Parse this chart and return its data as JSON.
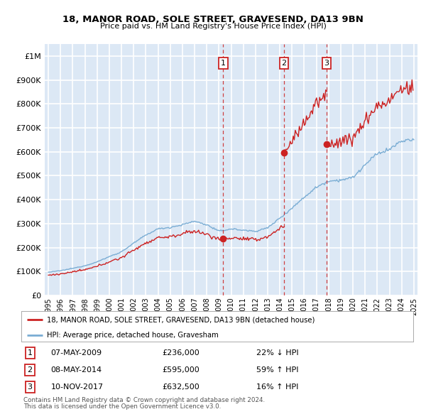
{
  "title1": "18, MANOR ROAD, SOLE STREET, GRAVESEND, DA13 9BN",
  "title2": "Price paid vs. HM Land Registry's House Price Index (HPI)",
  "ylim": [
    0,
    1050000
  ],
  "yticks": [
    0,
    100000,
    200000,
    300000,
    400000,
    500000,
    600000,
    700000,
    800000,
    900000,
    1000000
  ],
  "ytick_labels": [
    "£0",
    "£100K",
    "£200K",
    "£300K",
    "£400K",
    "£500K",
    "£600K",
    "£700K",
    "£800K",
    "£900K",
    "£1M"
  ],
  "xlim_start": 1994.7,
  "xlim_end": 2025.3,
  "background_color": "#dce8f5",
  "grid_color": "#ffffff",
  "red_line_color": "#cc2222",
  "blue_line_color": "#7aadd4",
  "transactions": [
    {
      "num": 1,
      "date": "07-MAY-2009",
      "price": 236000,
      "pct": "22%",
      "dir": "↓",
      "year": 2009.35
    },
    {
      "num": 2,
      "date": "08-MAY-2014",
      "price": 595000,
      "pct": "59%",
      "dir": "↑",
      "year": 2014.35
    },
    {
      "num": 3,
      "date": "10-NOV-2017",
      "price": 632500,
      "pct": "16%",
      "dir": "↑",
      "year": 2017.85
    }
  ],
  "legend_label_red": "18, MANOR ROAD, SOLE STREET, GRAVESEND, DA13 9BN (detached house)",
  "legend_label_blue": "HPI: Average price, detached house, Gravesham",
  "footer1": "Contains HM Land Registry data © Crown copyright and database right 2024.",
  "footer2": "This data is licensed under the Open Government Licence v3.0.",
  "hpi_base_years": [
    1995,
    1996,
    1997,
    1998,
    1999,
    2000,
    2001,
    2002,
    2003,
    2004,
    2005,
    2006,
    2007,
    2008,
    2009,
    2010,
    2011,
    2012,
    2013,
    2014,
    2015,
    2016,
    2017,
    2018,
    2019,
    2020,
    2021,
    2022,
    2023,
    2024,
    2025
  ],
  "hpi_base_vals": [
    97000,
    103000,
    113000,
    124000,
    140000,
    162000,
    182000,
    218000,
    252000,
    278000,
    284000,
    295000,
    310000,
    295000,
    268000,
    278000,
    272000,
    268000,
    282000,
    323000,
    365000,
    410000,
    452000,
    478000,
    482000,
    492000,
    545000,
    592000,
    610000,
    645000,
    650000
  ]
}
